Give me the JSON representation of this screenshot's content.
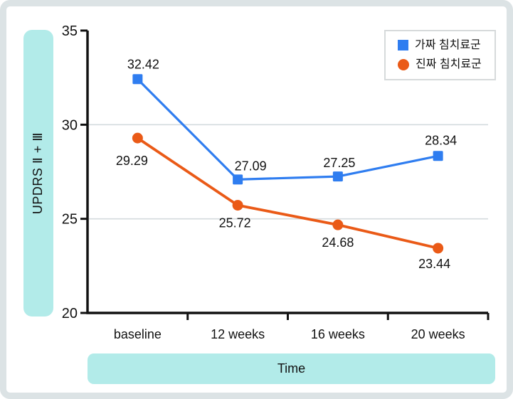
{
  "chart_data": {
    "type": "line",
    "categories": [
      "baseline",
      "12 weeks",
      "16 weeks",
      "20 weeks"
    ],
    "series": [
      {
        "name": "가짜 침치료군",
        "marker": "square",
        "color": "#2f7df0",
        "values": [
          32.42,
          27.09,
          27.25,
          28.34
        ]
      },
      {
        "name": "진짜 침치료군",
        "marker": "circle",
        "color": "#ea5a17",
        "values": [
          29.29,
          25.72,
          24.68,
          23.44
        ]
      }
    ],
    "xlabel": "Time",
    "ylabel": "UPDRS Ⅱ + Ⅲ",
    "ylim": [
      20,
      35
    ],
    "yticks": [
      20,
      25,
      30,
      35
    ],
    "gridlines_at": [
      25,
      30
    ],
    "grid": "horizontal-only",
    "legend_position": "top-right",
    "colors": {
      "axis": "#111111",
      "gridline": "#d4dbde",
      "label_box_teal": "#b2ebe9",
      "panel_border": "#dce3e5",
      "text": "#111111"
    }
  }
}
